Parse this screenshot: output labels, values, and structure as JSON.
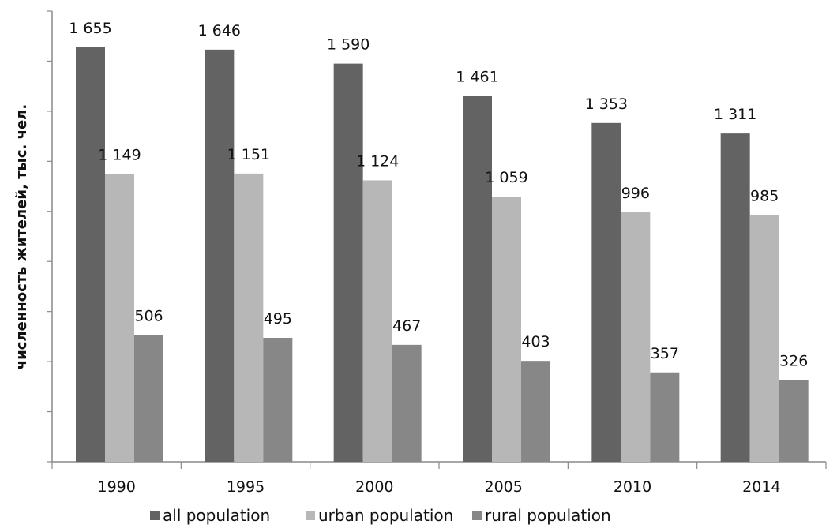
{
  "chart_data": {
    "type": "bar",
    "title": "",
    "xlabel": "",
    "ylabel": "численность жителей, тыс. чел.",
    "categories": [
      "1990",
      "1995",
      "2000",
      "2005",
      "2010",
      "2014"
    ],
    "series": [
      {
        "name": "all population",
        "color": "#636363",
        "values": [
          1655,
          1646,
          1590,
          1461,
          1353,
          1311
        ],
        "labels": [
          "1 655",
          "1 646",
          "1 590",
          "1 461",
          "1 353",
          "1 311"
        ]
      },
      {
        "name": "urban population",
        "color": "#b7b7b7",
        "values": [
          1149,
          1151,
          1124,
          1059,
          996,
          985
        ],
        "labels": [
          "1 149",
          "1 151",
          "1 124",
          "1 059",
          "996",
          "985"
        ]
      },
      {
        "name": "rural population",
        "color": "#878787",
        "values": [
          506,
          495,
          467,
          403,
          357,
          326
        ],
        "labels": [
          "506",
          "495",
          "467",
          "403",
          "357",
          "326"
        ]
      }
    ],
    "ylim": [
      0,
      1800
    ],
    "y_tick_interval": 200,
    "y_tick_labels_shown": false,
    "grid": false,
    "legend_position": "bottom"
  }
}
